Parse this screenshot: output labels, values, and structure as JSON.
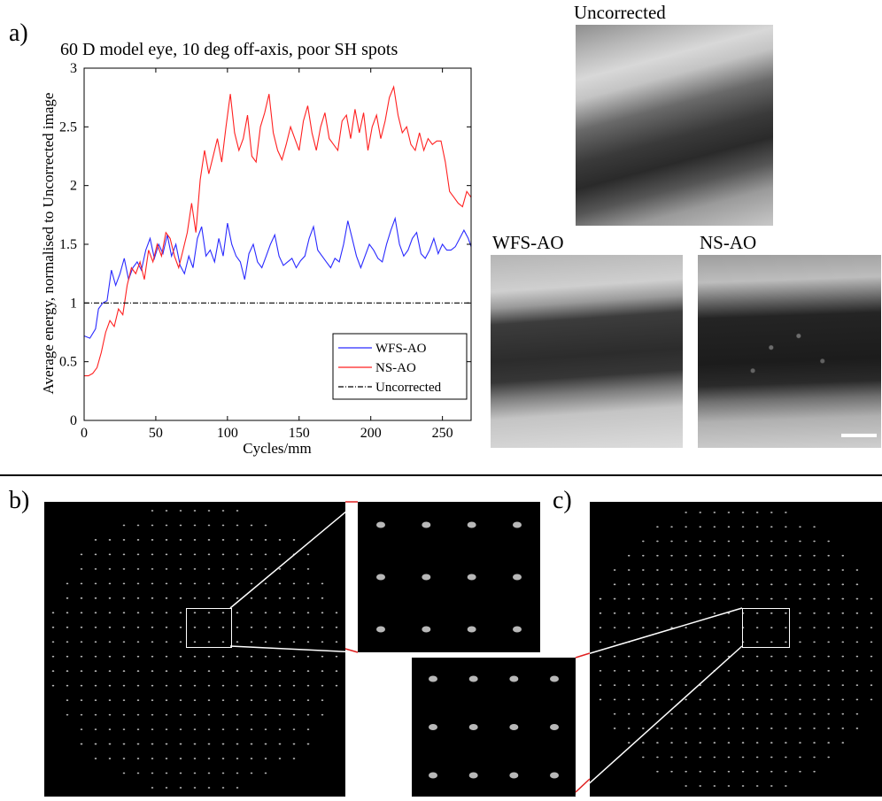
{
  "panel_a": {
    "label": "a)",
    "chart_data": {
      "type": "line",
      "title": "60 D model eye, 10 deg off-axis, poor SH spots",
      "xlabel": "Cycles/mm",
      "ylabel": "Average energy, normalised to Uncorrected image",
      "xlim": [
        0,
        270
      ],
      "ylim": [
        0,
        3
      ],
      "xticks": [
        0,
        50,
        100,
        150,
        200,
        250
      ],
      "yticks": [
        0,
        0.5,
        1,
        1.5,
        2,
        2.5,
        3
      ],
      "xtick_labels": [
        "0",
        "50",
        "100",
        "150",
        "200",
        "250"
      ],
      "ytick_labels": [
        "0",
        "0.5",
        "1",
        "1.5",
        "2",
        "2.5",
        "3"
      ],
      "grid": false,
      "legend_position": "bottom-right",
      "series": [
        {
          "name": "WFS-AO",
          "color": "#2a2aff",
          "style": "solid",
          "x": [
            0,
            4,
            8,
            10,
            13,
            16,
            19,
            22,
            25,
            28,
            31,
            34,
            37,
            40,
            43,
            46,
            49,
            52,
            55,
            58,
            61,
            64,
            67,
            70,
            73,
            76,
            79,
            82,
            85,
            88,
            91,
            94,
            97,
            100,
            103,
            106,
            109,
            112,
            115,
            118,
            121,
            124,
            127,
            130,
            133,
            136,
            139,
            142,
            145,
            148,
            151,
            154,
            157,
            160,
            163,
            166,
            169,
            172,
            175,
            178,
            181,
            184,
            187,
            190,
            193,
            196,
            199,
            202,
            205,
            208,
            211,
            214,
            217,
            220,
            223,
            226,
            229,
            232,
            235,
            238,
            241,
            244,
            247,
            250,
            253,
            256,
            259,
            262,
            265,
            268,
            270
          ],
          "y": [
            0.72,
            0.7,
            0.78,
            0.95,
            1.0,
            1.02,
            1.28,
            1.15,
            1.25,
            1.38,
            1.2,
            1.3,
            1.35,
            1.28,
            1.45,
            1.55,
            1.38,
            1.5,
            1.42,
            1.58,
            1.4,
            1.5,
            1.32,
            1.25,
            1.4,
            1.3,
            1.55,
            1.65,
            1.4,
            1.45,
            1.35,
            1.55,
            1.4,
            1.68,
            1.5,
            1.4,
            1.35,
            1.2,
            1.42,
            1.5,
            1.35,
            1.3,
            1.4,
            1.5,
            1.58,
            1.4,
            1.32,
            1.35,
            1.38,
            1.3,
            1.36,
            1.4,
            1.55,
            1.65,
            1.45,
            1.4,
            1.35,
            1.3,
            1.38,
            1.35,
            1.5,
            1.7,
            1.55,
            1.4,
            1.3,
            1.4,
            1.5,
            1.45,
            1.38,
            1.35,
            1.5,
            1.62,
            1.72,
            1.5,
            1.4,
            1.45,
            1.55,
            1.6,
            1.42,
            1.38,
            1.45,
            1.55,
            1.42,
            1.5,
            1.45,
            1.45,
            1.48,
            1.55,
            1.62,
            1.55,
            1.48
          ]
        },
        {
          "name": "NS-AO",
          "color": "#ff2020",
          "style": "solid",
          "x": [
            0,
            3,
            6,
            9,
            12,
            15,
            18,
            21,
            24,
            27,
            30,
            33,
            36,
            39,
            42,
            45,
            48,
            51,
            54,
            57,
            60,
            63,
            66,
            69,
            72,
            75,
            78,
            81,
            84,
            87,
            90,
            93,
            96,
            99,
            102,
            105,
            108,
            111,
            114,
            117,
            120,
            123,
            126,
            129,
            132,
            135,
            138,
            141,
            144,
            147,
            150,
            153,
            156,
            159,
            162,
            165,
            168,
            171,
            174,
            177,
            180,
            183,
            186,
            189,
            192,
            195,
            198,
            201,
            204,
            207,
            210,
            213,
            216,
            219,
            222,
            225,
            228,
            231,
            234,
            237,
            240,
            243,
            246,
            249,
            252,
            255,
            258,
            261,
            264,
            267,
            270
          ],
          "y": [
            0.38,
            0.38,
            0.4,
            0.45,
            0.58,
            0.75,
            0.85,
            0.8,
            0.95,
            0.9,
            1.15,
            1.3,
            1.25,
            1.35,
            1.2,
            1.45,
            1.35,
            1.5,
            1.4,
            1.6,
            1.55,
            1.4,
            1.3,
            1.45,
            1.6,
            1.85,
            1.6,
            2.05,
            2.3,
            2.1,
            2.25,
            2.4,
            2.2,
            2.5,
            2.78,
            2.45,
            2.3,
            2.4,
            2.6,
            2.25,
            2.2,
            2.5,
            2.62,
            2.78,
            2.45,
            2.3,
            2.22,
            2.35,
            2.5,
            2.4,
            2.3,
            2.55,
            2.68,
            2.45,
            2.3,
            2.5,
            2.62,
            2.4,
            2.35,
            2.3,
            2.55,
            2.6,
            2.4,
            2.65,
            2.45,
            2.62,
            2.3,
            2.5,
            2.6,
            2.4,
            2.55,
            2.75,
            2.84,
            2.6,
            2.45,
            2.5,
            2.35,
            2.3,
            2.45,
            2.3,
            2.4,
            2.35,
            2.38,
            2.38,
            2.2,
            1.95,
            1.9,
            1.85,
            1.82,
            1.95,
            1.9
          ]
        },
        {
          "name": "Uncorrected",
          "color": "#000000",
          "style": "dashdot",
          "x": [
            0,
            270
          ],
          "y": [
            1,
            1
          ]
        }
      ]
    },
    "images": {
      "uncorrected": "Uncorrected",
      "wfs_ao": "WFS-AO",
      "ns_ao": "NS-AO"
    }
  },
  "panel_b": {
    "label": "b)"
  },
  "panel_c": {
    "label": "c)"
  }
}
